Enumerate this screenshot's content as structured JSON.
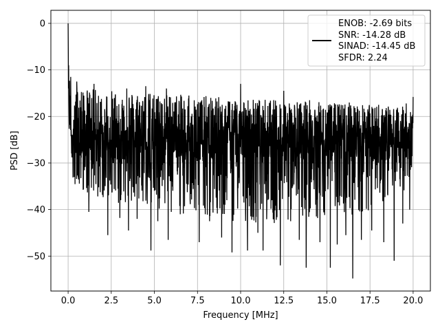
{
  "chart_data": {
    "type": "line",
    "title": "",
    "xlabel": "Frequency [MHz]",
    "ylabel": "PSD [dB]",
    "xlim": [
      -1.0,
      21.0
    ],
    "ylim": [
      -57.5,
      2.8
    ],
    "xticks": [
      0.0,
      2.5,
      5.0,
      7.5,
      10.0,
      12.5,
      15.0,
      17.5,
      20.0
    ],
    "xtick_labels": [
      "0.0",
      "2.5",
      "5.0",
      "7.5",
      "10.0",
      "12.5",
      "15.0",
      "17.5",
      "20.0"
    ],
    "yticks": [
      0,
      -10,
      -20,
      -30,
      -40,
      -50
    ],
    "ytick_labels": [
      "0",
      "−10",
      "−20",
      "−30",
      "−40",
      "−50"
    ],
    "grid": true,
    "legend_position": "top-right",
    "legend_lines": [
      "ENOB: -2.69 bits",
      "SNR: -14.28 dB",
      "SINAD: -14.45 dB",
      "SFDR: 2.24"
    ],
    "series": [
      {
        "color": "#000000",
        "x_start": 0.0,
        "x_end": 20.0,
        "peak": {
          "x": 0.0,
          "y": 0
        },
        "envelope_top": [
          [
            0.0,
            -9
          ],
          [
            0.2,
            -13
          ],
          [
            1.0,
            -14
          ],
          [
            5.0,
            -15
          ],
          [
            10.0,
            -16
          ],
          [
            15.0,
            -17
          ],
          [
            20.0,
            -18
          ]
        ],
        "envelope_bottom": [
          [
            0.0,
            -17
          ],
          [
            0.3,
            -35
          ],
          [
            2.0,
            -38
          ],
          [
            7.0,
            -42
          ],
          [
            12.0,
            -43
          ],
          [
            17.0,
            -41
          ],
          [
            20.0,
            -35
          ]
        ],
        "median": -25,
        "deep_dips": [
          [
            1.2,
            -40.5
          ],
          [
            2.3,
            -45.5
          ],
          [
            3.0,
            -41.8
          ],
          [
            3.5,
            -44.5
          ],
          [
            4.0,
            -42.0
          ],
          [
            4.8,
            -48.8
          ],
          [
            5.2,
            -42.5
          ],
          [
            5.8,
            -46.5
          ],
          [
            6.5,
            -41.0
          ],
          [
            7.0,
            -51.8
          ],
          [
            7.6,
            -47.0
          ],
          [
            8.2,
            -42.5
          ],
          [
            8.9,
            -46.0
          ],
          [
            9.5,
            -49.2
          ],
          [
            10.0,
            -44.0
          ],
          [
            10.4,
            -48.8
          ],
          [
            11.0,
            -45.0
          ],
          [
            11.3,
            -48.8
          ],
          [
            11.9,
            -42.0
          ],
          [
            12.3,
            -52.0
          ],
          [
            12.9,
            -42.5
          ],
          [
            13.4,
            -46.5
          ],
          [
            13.8,
            -52.5
          ],
          [
            14.6,
            -47.0
          ],
          [
            15.2,
            -52.5
          ],
          [
            15.6,
            -47.5
          ],
          [
            16.1,
            -45.5
          ],
          [
            16.5,
            -54.8
          ],
          [
            17.0,
            -46.5
          ],
          [
            17.6,
            -44.5
          ],
          [
            18.3,
            -47.0
          ],
          [
            18.9,
            -51.0
          ],
          [
            19.4,
            -43.0
          ],
          [
            19.8,
            -40.0
          ]
        ],
        "tall_spikes": [
          [
            0.15,
            -11.5
          ],
          [
            0.5,
            -12.5
          ],
          [
            1.5,
            -13.0
          ],
          [
            3.4,
            -14.0
          ],
          [
            4.5,
            -13.5
          ],
          [
            5.7,
            -14.0
          ],
          [
            7.0,
            -15.5
          ],
          [
            10.0,
            -13.0
          ],
          [
            12.5,
            -14.5
          ],
          [
            14.0,
            -16.5
          ],
          [
            16.3,
            -17.0
          ],
          [
            18.0,
            -17.5
          ],
          [
            19.6,
            -17.2
          ],
          [
            20.0,
            -15.8
          ]
        ]
      }
    ]
  }
}
